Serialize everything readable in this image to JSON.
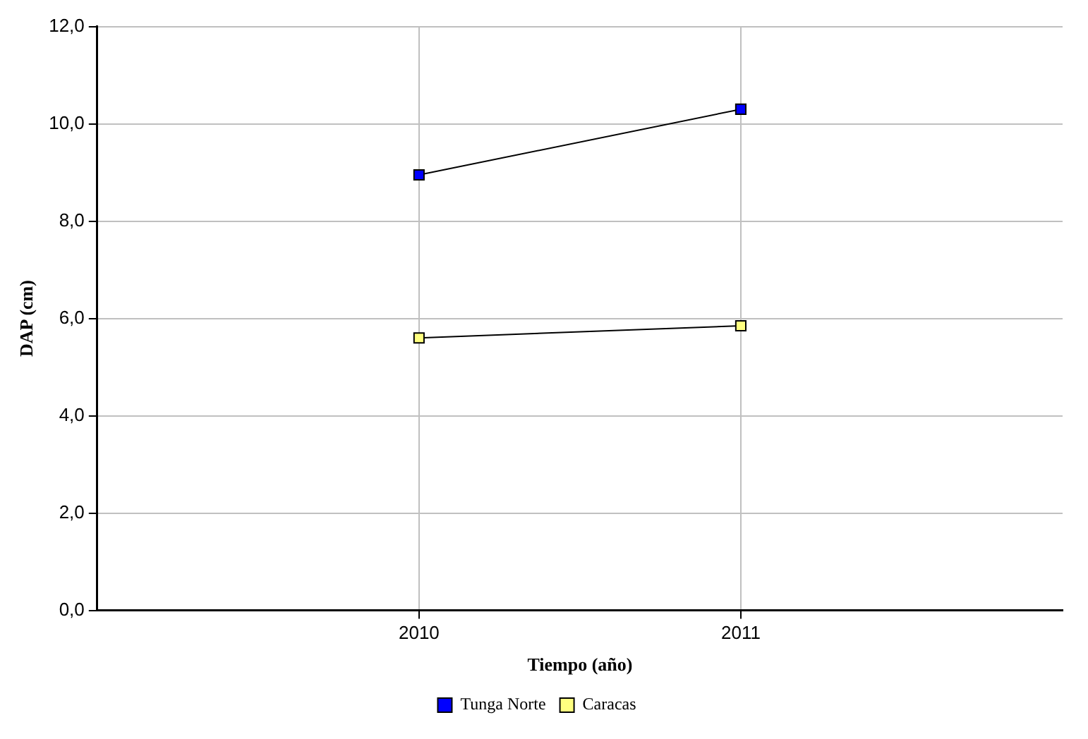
{
  "chart_data": {
    "type": "line",
    "xlabel": "Tiempo (año)",
    "ylabel": "DAP (cm)",
    "x": [
      2010,
      2011
    ],
    "xlim": [
      2009,
      2012
    ],
    "xticks": [
      2010,
      2011
    ],
    "ylim": [
      0,
      12
    ],
    "yticks": [
      {
        "value": 0,
        "label": "0,0"
      },
      {
        "value": 2,
        "label": "2,0"
      },
      {
        "value": 4,
        "label": "4,0"
      },
      {
        "value": 6,
        "label": "6,0"
      },
      {
        "value": 8,
        "label": "8,0"
      },
      {
        "value": 10,
        "label": "10,0"
      },
      {
        "value": 12,
        "label": "12,0"
      }
    ],
    "series": [
      {
        "name": "Tunga Norte",
        "color": "#0000ff",
        "values": [
          8.95,
          10.3
        ]
      },
      {
        "name": "Caracas",
        "color": "#ffff80",
        "values": [
          5.6,
          5.85
        ]
      }
    ],
    "grid": true,
    "legend": "bottom",
    "marker": "square",
    "line_style": "solid"
  }
}
